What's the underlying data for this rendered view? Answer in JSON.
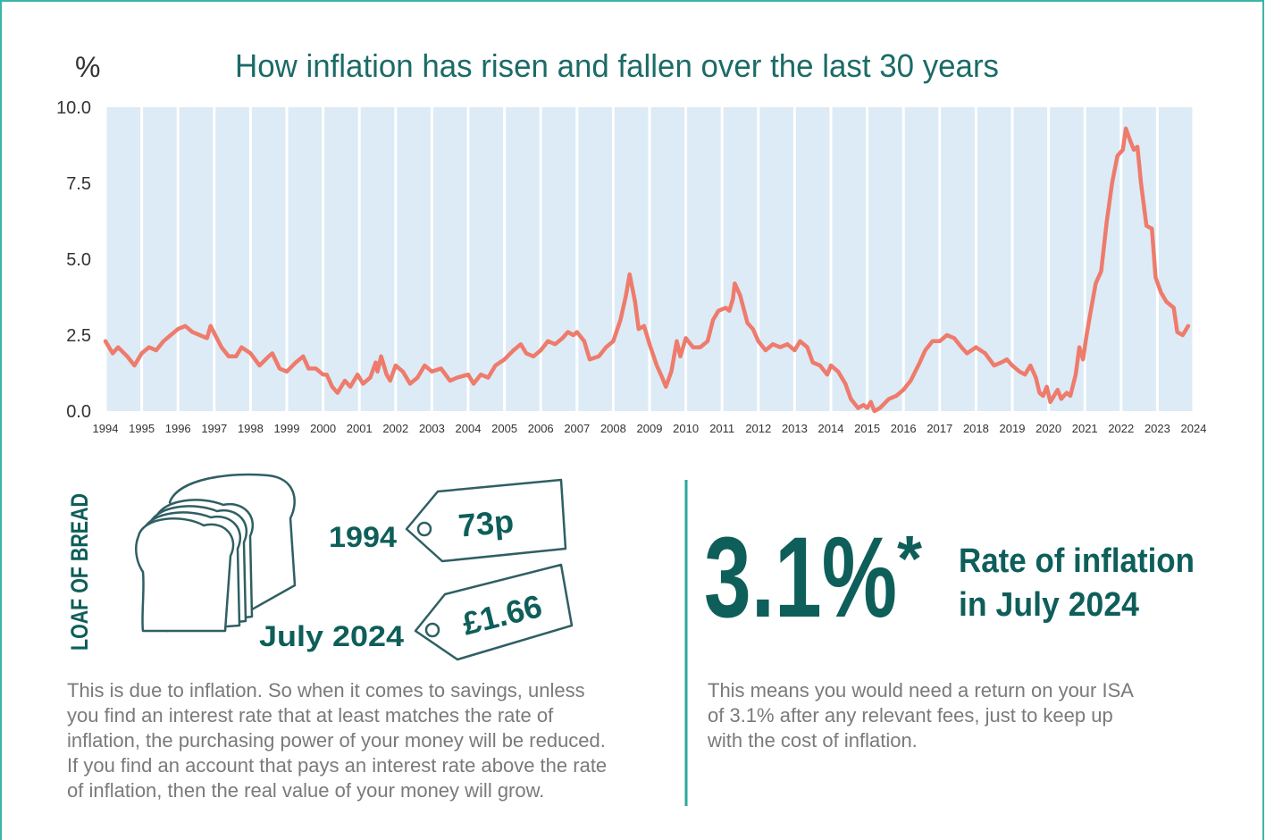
{
  "chart_data": {
    "type": "line",
    "title": "How inflation has risen and fallen over the last 30 years",
    "y_label": "%",
    "color": "#ee7b6c",
    "band_color": "#dcebf6",
    "grid": true,
    "xlim": [
      1994,
      2024
    ],
    "xticks": [
      1994,
      1995,
      1996,
      1997,
      1998,
      1999,
      2000,
      2001,
      2002,
      2003,
      2004,
      2005,
      2006,
      2007,
      2008,
      2009,
      2010,
      2011,
      2012,
      2013,
      2014,
      2015,
      2016,
      2017,
      2018,
      2019,
      2020,
      2021,
      2022,
      2023,
      2024
    ],
    "ylim": [
      0,
      10
    ],
    "yticks": [
      {
        "value": 0,
        "label": "0.0"
      },
      2.5,
      {
        "value": 5,
        "label": "5.0"
      },
      7.5,
      {
        "value": 10,
        "label": "10.0"
      }
    ],
    "x": [
      1994.0,
      1994.2,
      1994.35,
      1994.6,
      1994.8,
      1995.0,
      1995.2,
      1995.4,
      1995.6,
      1995.8,
      1996.0,
      1996.2,
      1996.4,
      1996.6,
      1996.8,
      1996.9,
      1997.2,
      1997.4,
      1997.6,
      1997.75,
      1998.0,
      1998.25,
      1998.5,
      1998.6,
      1998.8,
      1999.0,
      1999.25,
      1999.45,
      1999.6,
      1999.8,
      2000.0,
      2000.1,
      2000.25,
      2000.4,
      2000.6,
      2000.75,
      2000.95,
      2001.1,
      2001.3,
      2001.45,
      2001.5,
      2001.6,
      2001.75,
      2001.85,
      2002.0,
      2002.2,
      2002.4,
      2002.6,
      2002.8,
      2003.0,
      2003.25,
      2003.5,
      2003.7,
      2004.0,
      2004.15,
      2004.35,
      2004.55,
      2004.75,
      2005.0,
      2005.25,
      2005.45,
      2005.6,
      2005.8,
      2006.0,
      2006.2,
      2006.4,
      2006.6,
      2006.75,
      2006.9,
      2007.0,
      2007.2,
      2007.35,
      2007.6,
      2007.8,
      2008.0,
      2008.2,
      2008.35,
      2008.45,
      2008.6,
      2008.7,
      2008.85,
      2009.0,
      2009.2,
      2009.35,
      2009.45,
      2009.6,
      2009.75,
      2009.85,
      2010.0,
      2010.2,
      2010.4,
      2010.6,
      2010.75,
      2010.9,
      2011.1,
      2011.2,
      2011.3,
      2011.35,
      2011.5,
      2011.7,
      2011.85,
      2012.0,
      2012.2,
      2012.4,
      2012.6,
      2012.8,
      2013.0,
      2013.15,
      2013.35,
      2013.5,
      2013.7,
      2013.9,
      2014.0,
      2014.2,
      2014.4,
      2014.55,
      2014.75,
      2014.9,
      2015.0,
      2015.1,
      2015.2,
      2015.35,
      2015.6,
      2015.8,
      2016.0,
      2016.2,
      2016.45,
      2016.6,
      2016.8,
      2017.0,
      2017.2,
      2017.4,
      2017.6,
      2017.75,
      2018.0,
      2018.25,
      2018.5,
      2018.7,
      2018.85,
      2019.0,
      2019.2,
      2019.35,
      2019.5,
      2019.65,
      2019.75,
      2019.85,
      2019.95,
      2020.05,
      2020.25,
      2020.35,
      2020.5,
      2020.6,
      2020.75,
      2020.85,
      2020.95,
      2021.05,
      2021.15,
      2021.3,
      2021.45,
      2021.6,
      2021.75,
      2021.9,
      2022.05,
      2022.13,
      2022.25,
      2022.35,
      2022.45,
      2022.55,
      2022.7,
      2022.85,
      2022.95,
      2023.1,
      2023.25,
      2023.45,
      2023.55,
      2023.7,
      2023.85
    ],
    "values": [
      2.3,
      1.9,
      2.1,
      1.8,
      1.5,
      1.9,
      2.1,
      2.0,
      2.3,
      2.5,
      2.7,
      2.8,
      2.6,
      2.5,
      2.4,
      2.8,
      2.1,
      1.8,
      1.8,
      2.1,
      1.9,
      1.5,
      1.8,
      1.9,
      1.4,
      1.3,
      1.6,
      1.8,
      1.4,
      1.4,
      1.2,
      1.2,
      0.8,
      0.6,
      1.0,
      0.8,
      1.2,
      0.9,
      1.1,
      1.6,
      1.3,
      1.8,
      1.2,
      1.0,
      1.5,
      1.3,
      0.9,
      1.1,
      1.5,
      1.3,
      1.4,
      1.0,
      1.1,
      1.2,
      0.9,
      1.2,
      1.1,
      1.5,
      1.7,
      2.0,
      2.2,
      1.9,
      1.8,
      2.0,
      2.3,
      2.2,
      2.4,
      2.6,
      2.5,
      2.6,
      2.3,
      1.7,
      1.8,
      2.1,
      2.3,
      3.0,
      3.8,
      4.5,
      3.6,
      2.7,
      2.8,
      2.2,
      1.5,
      1.1,
      0.8,
      1.3,
      2.3,
      1.8,
      2.4,
      2.1,
      2.1,
      2.3,
      3.0,
      3.3,
      3.4,
      3.3,
      3.7,
      4.2,
      3.8,
      2.9,
      2.7,
      2.3,
      2.0,
      2.2,
      2.1,
      2.2,
      2.0,
      2.3,
      2.1,
      1.6,
      1.5,
      1.2,
      1.5,
      1.3,
      0.9,
      0.4,
      0.1,
      0.2,
      0.1,
      0.3,
      0.0,
      0.1,
      0.4,
      0.5,
      0.7,
      1.0,
      1.6,
      2.0,
      2.3,
      2.3,
      2.5,
      2.4,
      2.1,
      1.9,
      2.1,
      1.9,
      1.5,
      1.6,
      1.7,
      1.5,
      1.3,
      1.2,
      1.5,
      1.1,
      0.6,
      0.5,
      0.8,
      0.3,
      0.7,
      0.4,
      0.6,
      0.5,
      1.2,
      2.1,
      1.7,
      2.5,
      3.2,
      4.2,
      4.6,
      6.2,
      7.5,
      8.4,
      8.6,
      9.3,
      8.9,
      8.6,
      8.7,
      7.5,
      6.1,
      6.0,
      4.4,
      3.9,
      3.6,
      3.4,
      2.6,
      2.5,
      2.8
    ]
  },
  "bread": {
    "label": "LOAF OF BREAD",
    "then_date": "1994",
    "then_price": "73p",
    "now_date": "July 2024",
    "now_price": "£1.66",
    "text": [
      "This is due to inflation. So when it comes to savings, unless",
      "you find an interest rate that at least matches the rate of",
      "inflation, the purchasing power of your money will be reduced.",
      "If you find an account that pays an interest rate above the rate",
      "of inflation, then the real value of your money will grow."
    ]
  },
  "rate": {
    "value": "3.1%",
    "asterisk": "*",
    "label": [
      "Rate of inflation",
      "in July 2024"
    ],
    "text": [
      "This means you would need a return on your ISA",
      "of 3.1% after any relevant fees, just to keep up",
      "with the cost of inflation."
    ]
  }
}
